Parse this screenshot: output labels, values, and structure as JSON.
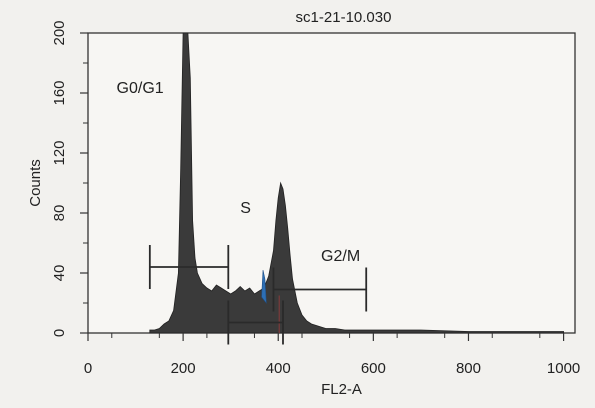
{
  "chart_data": {
    "type": "histogram",
    "title": "sc1-21-10.030",
    "xlabel": "FL2-A",
    "ylabel": "Counts",
    "xlim": [
      0,
      1024
    ],
    "ylim": [
      0,
      200
    ],
    "xticks": [
      0,
      200,
      400,
      600,
      800,
      1000
    ],
    "yticks": [
      0,
      40,
      80,
      120,
      160,
      200
    ],
    "grid": false,
    "series": [
      {
        "x": [
          130,
          140,
          150,
          160,
          170,
          180,
          190,
          195,
          200,
          205,
          210,
          215,
          220,
          225,
          230,
          240,
          250,
          260,
          270,
          280,
          290,
          300,
          310,
          320,
          330,
          340,
          350,
          360,
          370,
          380,
          390,
          395,
          400,
          405,
          410,
          415,
          420,
          425,
          430,
          440,
          450,
          460,
          470,
          480,
          490,
          500,
          520,
          540,
          560,
          580,
          600,
          640,
          700,
          800,
          900,
          1000
        ],
        "values": [
          2,
          2,
          3,
          6,
          8,
          15,
          40,
          110,
          200,
          200,
          200,
          170,
          75,
          50,
          40,
          33,
          30,
          28,
          32,
          30,
          28,
          26,
          28,
          31,
          28,
          30,
          26,
          28,
          30,
          38,
          55,
          75,
          90,
          100,
          96,
          85,
          70,
          52,
          36,
          20,
          12,
          8,
          6,
          5,
          4,
          3,
          3,
          2,
          2,
          2,
          2,
          2,
          2,
          1,
          1,
          1
        ]
      }
    ],
    "annotations": [
      {
        "label": "G0/G1",
        "x": 60,
        "y": 160
      },
      {
        "label": "S",
        "x": 320,
        "y": 80
      },
      {
        "label": "G2/M",
        "x": 490,
        "y": 48
      }
    ],
    "markers": [
      {
        "x_start": 130,
        "x_end": 295,
        "y": 44
      },
      {
        "x_start": 295,
        "x_end": 410,
        "y": 7
      },
      {
        "x_start": 390,
        "x_end": 585,
        "y": 29
      }
    ]
  }
}
